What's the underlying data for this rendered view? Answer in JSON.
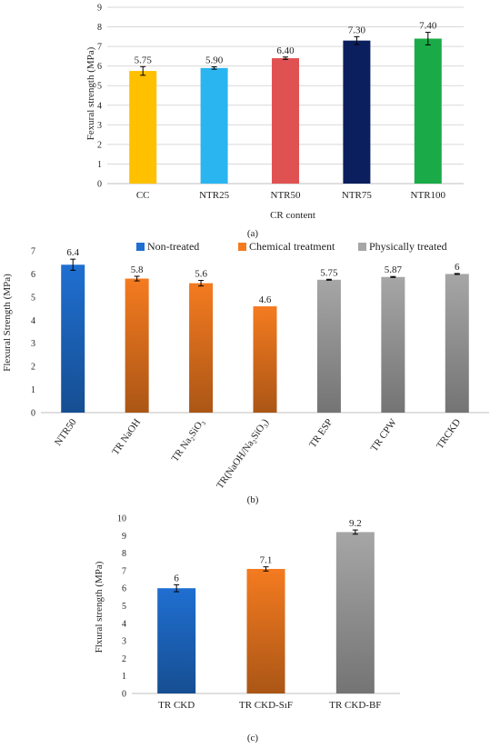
{
  "chart_data": [
    {
      "type": "bar",
      "caption": "(a)",
      "categories": [
        "CC",
        "NTR25",
        "NTR50",
        "NTR75",
        "NTR100"
      ],
      "values": [
        5.75,
        5.9,
        6.4,
        7.3,
        7.4
      ],
      "value_labels": [
        "5.75",
        "5.90",
        "6.40",
        "7.30",
        "7.40"
      ],
      "errors": [
        0.22,
        0.06,
        0.06,
        0.2,
        0.32
      ],
      "colors": [
        "#ffc000",
        "#2bb5f0",
        "#e05252",
        "#0b1f5e",
        "#1aab48"
      ],
      "xlabel": "CR content",
      "ylabel": "Fexural strength (MPa)",
      "ylim": [
        0,
        9
      ],
      "yticks": [
        0,
        1,
        2,
        3,
        4,
        5,
        6,
        7,
        8,
        9
      ],
      "grid": true
    },
    {
      "type": "bar",
      "caption": "(b)",
      "categories": [
        "NTR50",
        "TR NaOH",
        "TR Na₂SiO₃",
        "TR(NaOH/Na₂SiO₃)",
        "TR ESP",
        "TR CPW",
        "TRCKD"
      ],
      "values": [
        6.4,
        5.8,
        5.6,
        4.6,
        5.75,
        5.87,
        6.0
      ],
      "value_labels": [
        "6.4",
        "5.8",
        "5.6",
        "4.6",
        "5.75",
        "5.87",
        "6"
      ],
      "errors": [
        0.24,
        0.1,
        0.12,
        0.0,
        0.02,
        0.02,
        0.02
      ],
      "groups": [
        0,
        1,
        1,
        1,
        2,
        2,
        2
      ],
      "legend": [
        {
          "name": "Non-treated",
          "color": "#1f6fd1"
        },
        {
          "name": "Chemical treatment",
          "color": "#f47b20"
        },
        {
          "name": "Physically treated",
          "color": "#a6a6a6"
        }
      ],
      "legend_position": "top",
      "xlabel": "",
      "ylabel": "Flexural Strength (MPa)",
      "ylim": [
        0,
        7
      ],
      "yticks": [
        0,
        1,
        2,
        3,
        4,
        5,
        6,
        7
      ],
      "grid": false
    },
    {
      "type": "bar",
      "caption": "(c)",
      "categories": [
        "TR CKD",
        "TR CKD-SıF",
        "TR CKD-BF"
      ],
      "values": [
        6.0,
        7.1,
        9.2
      ],
      "value_labels": [
        "6",
        "7.1",
        "9.2"
      ],
      "errors": [
        0.2,
        0.12,
        0.12
      ],
      "colors": [
        "#1f6fd1",
        "#f47b20",
        "#a6a6a6"
      ],
      "xlabel": "",
      "ylabel": "Flxural strength (MPa)",
      "ylim": [
        0,
        10
      ],
      "yticks": [
        0,
        1,
        2,
        3,
        4,
        5,
        6,
        7,
        8,
        9,
        10
      ],
      "grid": false
    }
  ]
}
